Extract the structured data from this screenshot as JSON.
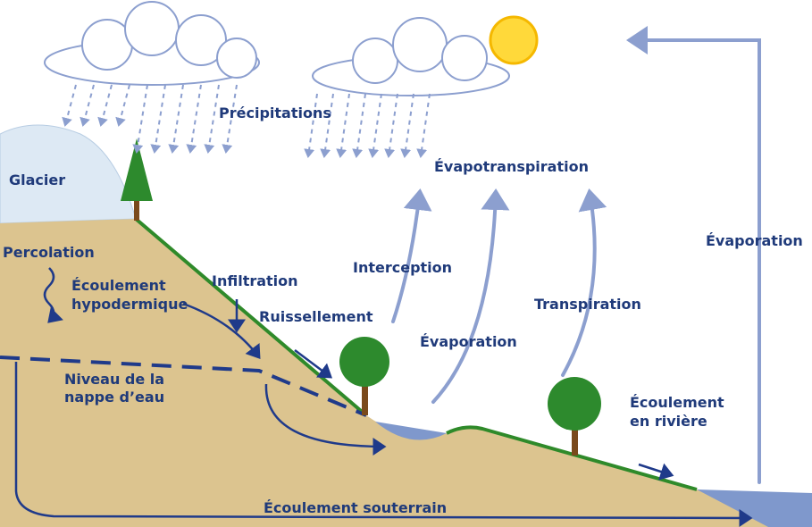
{
  "labels": {
    "precipitations": "Précipitations",
    "glacier": "Glacier",
    "evapotranspiration": "Évapotranspiration",
    "evaporation_right": "Évaporation",
    "percolation": "Percolation",
    "ecoulement_hypodermique": [
      "Écoulement",
      "hypodermique"
    ],
    "infiltration": "Infiltration",
    "interception": "Interception",
    "ruissellement": "Ruissellement",
    "transpiration": "Transpiration",
    "evaporation_middle": "Évaporation",
    "niveau_nappe": [
      "Niveau de la",
      "nappe d’eau"
    ],
    "ecoulement_riviere": [
      "Écoulement",
      "en rivière"
    ],
    "ecoulement_souterrain": "Écoulement souterrain"
  }
}
